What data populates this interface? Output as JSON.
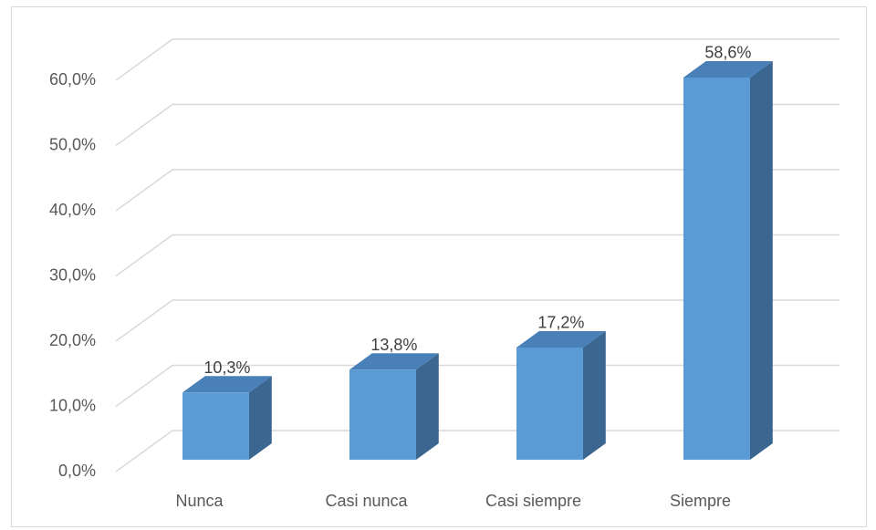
{
  "chart_data": {
    "type": "bar",
    "categories": [
      "Nunca",
      "Casi nunca",
      "Casi siempre",
      "Siempre"
    ],
    "values": [
      10.3,
      13.8,
      17.2,
      58.6
    ],
    "value_labels": [
      "10,3%",
      "13,8%",
      "17,2%",
      "58,6%"
    ],
    "color": "#5b9bd5",
    "ylim": [
      0,
      60
    ],
    "yticks": [
      {
        "value": 0,
        "label": "0,0%"
      },
      {
        "value": 10,
        "label": "10,0%"
      },
      {
        "value": 20,
        "label": "20,0%"
      },
      {
        "value": 30,
        "label": "30,0%"
      },
      {
        "value": 40,
        "label": "40,0%"
      },
      {
        "value": 50,
        "label": "50,0%"
      },
      {
        "value": 60,
        "label": "60,0%"
      }
    ],
    "grid": true
  }
}
